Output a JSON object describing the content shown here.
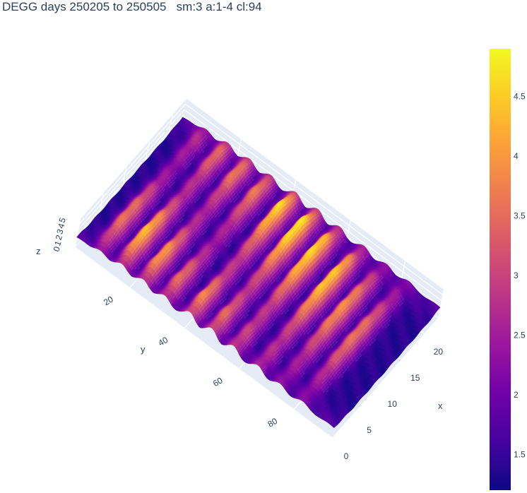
{
  "title": "DEGG days 250205 to 250505   sm:3 a:1-4 cl:94",
  "chart_data": {
    "type": "surface",
    "title": "DEGG days 250205 to 250505   sm:3 a:1-4 cl:94",
    "colorscale": [
      "#0d0887",
      "#46039f",
      "#7201a8",
      "#9c179e",
      "#bd3786",
      "#d8576b",
      "#ed7953",
      "#fb9f3a",
      "#fdca26",
      "#f0f921"
    ],
    "x_axis": {
      "label": "x",
      "ticks": [
        "0",
        "5",
        "10",
        "15",
        "20"
      ],
      "range": [
        0,
        23
      ]
    },
    "y_axis": {
      "label": "y",
      "ticks": [
        "20",
        "40",
        "60",
        "80"
      ],
      "range": [
        0,
        94
      ]
    },
    "z_axis": {
      "label": "z",
      "ticks": [
        "0",
        "1",
        "2",
        "3",
        "4",
        "5"
      ],
      "range": [
        0,
        5
      ]
    },
    "colorbar": {
      "ticks": [
        "1.5",
        "2",
        "2.5",
        "3",
        "3.5",
        "4",
        "4.5"
      ],
      "range": [
        1.2,
        4.9
      ]
    },
    "ridges_y": [
      8,
      16,
      24,
      32,
      41,
      49,
      57,
      66,
      74,
      82
    ],
    "ridge_peak_z": [
      3.6,
      4.4,
      4.2,
      3.9,
      4.7,
      4.8,
      4.6,
      4.5,
      3.9,
      3.6
    ],
    "trough_z": 1.4,
    "edge_z": 2.0
  }
}
